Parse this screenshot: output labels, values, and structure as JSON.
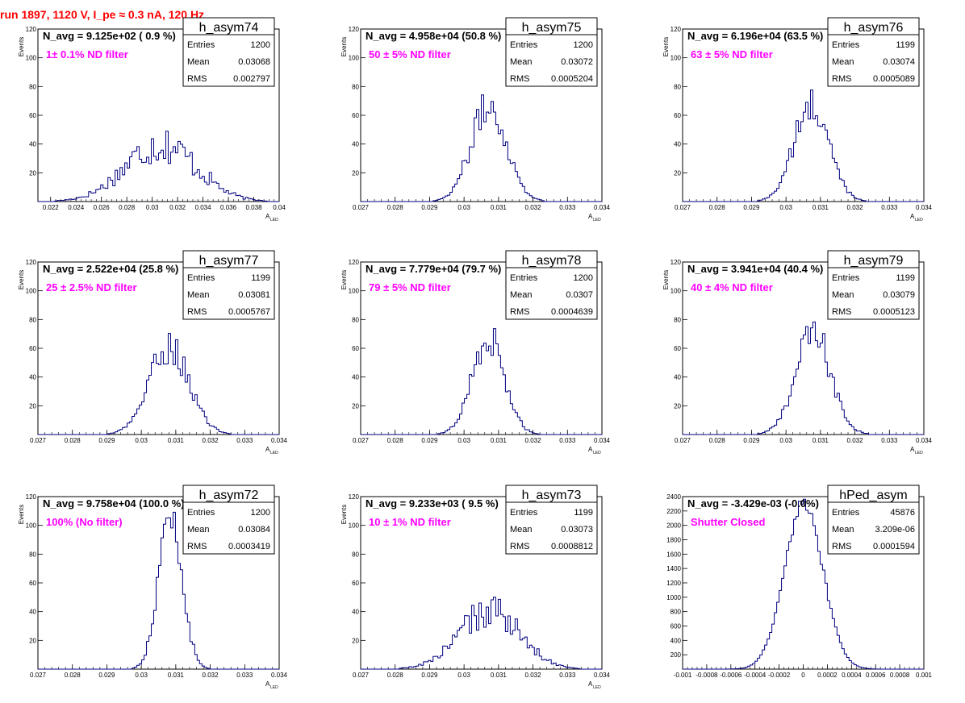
{
  "header": {
    "title": "run 1897,  1120 V, I_pe ≈ 0.3 nA, 120 Hz"
  },
  "chart_data": [
    {
      "type": "bar",
      "name": "h_asym74",
      "navg": "N_avg = 9.125e+02 ( 0.9 %)",
      "filter": "1± 0.1% ND filter",
      "stats": {
        "entries": "1200",
        "mean": "0.03068",
        "rms": "0.002797"
      },
      "xlabel": "A",
      "xlabel_sub": "LED",
      "ylabel": "Events",
      "xlim": [
        0.021,
        0.04
      ],
      "ylim": [
        0,
        120
      ],
      "xticks": [
        "0.022",
        "0.024",
        "0.026",
        "0.028",
        "0.03",
        "0.032",
        "0.034",
        "0.036",
        "0.038",
        "0.04"
      ],
      "yticks": [
        "20",
        "40",
        "60",
        "80",
        "100",
        "120"
      ],
      "mean": 0.03068,
      "rms": 0.002797,
      "peak": 40,
      "bins": 100,
      "noise": 0.35
    },
    {
      "type": "bar",
      "name": "h_asym75",
      "navg": "N_avg = 4.958e+04 (50.8 %)",
      "filter": "50 ± 5% ND filter",
      "stats": {
        "entries": "1200",
        "mean": "0.03072",
        "rms": "0.0005204"
      },
      "xlabel": "A",
      "xlabel_sub": "LED",
      "ylabel": "Events",
      "xlim": [
        0.027,
        0.034
      ],
      "ylim": [
        0,
        120
      ],
      "xticks": [
        "0.027",
        "0.028",
        "0.029",
        "0.03",
        "0.031",
        "0.032",
        "0.033",
        "0.034"
      ],
      "yticks": [
        "20",
        "40",
        "60",
        "80",
        "100",
        "120"
      ],
      "mean": 0.03072,
      "rms": 0.0005204,
      "peak": 66,
      "bins": 100,
      "noise": 0.2
    },
    {
      "type": "bar",
      "name": "h_asym76",
      "navg": "N_avg = 6.196e+04 (63.5 %)",
      "filter": "63 ± 5% ND filter",
      "stats": {
        "entries": "1199",
        "mean": "0.03074",
        "rms": "0.0005089"
      },
      "xlabel": "A",
      "xlabel_sub": "LED",
      "ylabel": "Events",
      "xlim": [
        0.027,
        0.034
      ],
      "ylim": [
        0,
        120
      ],
      "xticks": [
        "0.027",
        "0.028",
        "0.029",
        "0.03",
        "0.031",
        "0.032",
        "0.033",
        "0.034"
      ],
      "yticks": [
        "20",
        "40",
        "60",
        "80",
        "100",
        "120"
      ],
      "mean": 0.03074,
      "rms": 0.0005089,
      "peak": 66,
      "bins": 100,
      "noise": 0.2
    },
    {
      "type": "bar",
      "name": "h_asym77",
      "navg": "N_avg = 2.522e+04 (25.8 %)",
      "filter": "25 ± 2.5% ND filter",
      "stats": {
        "entries": "1199",
        "mean": "0.03081",
        "rms": "0.0005767"
      },
      "xlabel": "A",
      "xlabel_sub": "LED",
      "ylabel": "Events",
      "xlim": [
        0.027,
        0.034
      ],
      "ylim": [
        0,
        120
      ],
      "xticks": [
        "0.027",
        "0.028",
        "0.029",
        "0.03",
        "0.031",
        "0.032",
        "0.033",
        "0.034"
      ],
      "yticks": [
        "20",
        "40",
        "60",
        "80",
        "100",
        "120"
      ],
      "mean": 0.03081,
      "rms": 0.0005767,
      "peak": 61,
      "bins": 100,
      "noise": 0.2
    },
    {
      "type": "bar",
      "name": "h_asym78",
      "navg": "N_avg = 7.779e+04 (79.7 %)",
      "filter": "79 ± 5% ND filter",
      "stats": {
        "entries": "1200",
        "mean": "0.0307",
        "rms": "0.0004639"
      },
      "xlabel": "A",
      "xlabel_sub": "LED",
      "ylabel": "Events",
      "xlim": [
        0.027,
        0.034
      ],
      "ylim": [
        0,
        120
      ],
      "xticks": [
        "0.027",
        "0.028",
        "0.029",
        "0.03",
        "0.031",
        "0.032",
        "0.033",
        "0.034"
      ],
      "yticks": [
        "20",
        "40",
        "60",
        "80",
        "100",
        "120"
      ],
      "mean": 0.0307,
      "rms": 0.0004639,
      "peak": 68,
      "bins": 100,
      "noise": 0.2
    },
    {
      "type": "bar",
      "name": "h_asym79",
      "navg": "N_avg = 3.941e+04 (40.4 %)",
      "filter": "40 ± 4% ND filter",
      "stats": {
        "entries": "1199",
        "mean": "0.03079",
        "rms": "0.0005123"
      },
      "xlabel": "A",
      "xlabel_sub": "LED",
      "ylabel": "Events",
      "xlim": [
        0.027,
        0.034
      ],
      "ylim": [
        0,
        120
      ],
      "xticks": [
        "0.027",
        "0.028",
        "0.029",
        "0.03",
        "0.031",
        "0.032",
        "0.033",
        "0.034"
      ],
      "yticks": [
        "20",
        "40",
        "60",
        "80",
        "100",
        "120"
      ],
      "mean": 0.03079,
      "rms": 0.0005123,
      "peak": 70,
      "bins": 100,
      "noise": 0.2
    },
    {
      "type": "bar",
      "name": "h_asym72",
      "navg": "N_avg = 9.758e+04 (100.0 %)",
      "filter": "100% (No filter)",
      "stats": {
        "entries": "1200",
        "mean": "0.03084",
        "rms": "0.0003419"
      },
      "xlabel": "A",
      "xlabel_sub": "LED",
      "ylabel": "Events",
      "xlim": [
        0.027,
        0.034
      ],
      "ylim": [
        0,
        120
      ],
      "xticks": [
        "0.027",
        "0.028",
        "0.029",
        "0.03",
        "0.031",
        "0.032",
        "0.033",
        "0.034"
      ],
      "yticks": [
        "20",
        "40",
        "60",
        "80",
        "100",
        "120"
      ],
      "mean": 0.03084,
      "rms": 0.0003419,
      "peak": 106,
      "bins": 100,
      "noise": 0.15
    },
    {
      "type": "bar",
      "name": "h_asym73",
      "navg": "N_avg = 9.233e+03 ( 9.5 %)",
      "filter": "10 ± 1% ND filter",
      "stats": {
        "entries": "1199",
        "mean": "0.03073",
        "rms": "0.0008812"
      },
      "xlabel": "A",
      "xlabel_sub": "LED",
      "ylabel": "Events",
      "xlim": [
        0.027,
        0.034
      ],
      "ylim": [
        0,
        120
      ],
      "xticks": [
        "0.027",
        "0.028",
        "0.029",
        "0.03",
        "0.031",
        "0.032",
        "0.033",
        "0.034"
      ],
      "yticks": [
        "20",
        "40",
        "60",
        "80",
        "100",
        "120"
      ],
      "mean": 0.03073,
      "rms": 0.0008812,
      "peak": 40,
      "bins": 100,
      "noise": 0.3
    },
    {
      "type": "bar",
      "name": "hPed_asym",
      "navg": "N_avg = -3.429e-03 (-0.0%)",
      "filter": "Shutter Closed",
      "stats": {
        "entries": "45876",
        "mean": "3.209e-06",
        "rms": "0.0001594"
      },
      "xlabel": "",
      "xlabel_sub": "",
      "ylabel": "",
      "xlim": [
        -0.001,
        0.001
      ],
      "ylim": [
        0,
        2400
      ],
      "xticks": [
        "-0.001",
        "-0.0008",
        "-0.0006",
        "-0.0004",
        "-0.0002",
        "0",
        "0.0002",
        "0.0004",
        "0.0006",
        "0.0008",
        "0.001"
      ],
      "yticks": [
        "200",
        "400",
        "600",
        "800",
        "1000",
        "1200",
        "1400",
        "1600",
        "1800",
        "2000",
        "2200",
        "2400"
      ],
      "mean": 3.209e-06,
      "rms": 0.0001594,
      "peak": 2300,
      "bins": 100,
      "noise": 0.04
    }
  ],
  "stat_labels": {
    "entries": "Entries",
    "mean": "Mean",
    "rms": "RMS"
  },
  "colors": {
    "histogram": "#000080",
    "title": "#ff0000",
    "filter_text": "#ff00ff"
  }
}
